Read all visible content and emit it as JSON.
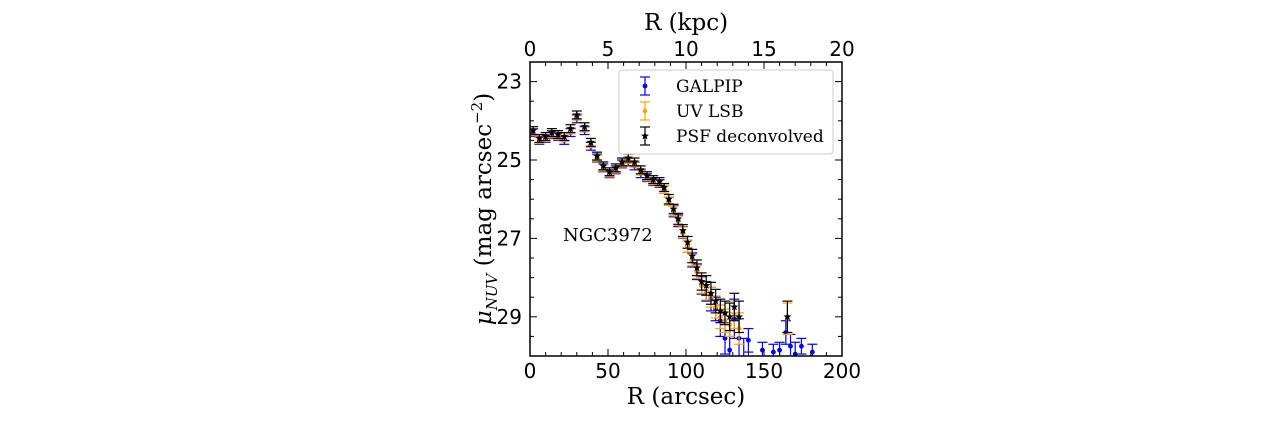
{
  "chart_data": {
    "type": "scatter",
    "title": "",
    "annotation": "NGC3972",
    "xlabel": "R (arcsec)",
    "x2label": "R (kpc)",
    "ylabel": "μ_NUV (mag arcsec⁻²)",
    "ylabel_parts": {
      "mu": "μ",
      "sub": "NUV",
      "rest": " (mag arcsec",
      "exp": "−2",
      "close": ")"
    },
    "xlim": [
      0,
      200
    ],
    "x2lim": [
      0,
      20
    ],
    "ylim": [
      30,
      22.5
    ],
    "yaxis_inverted": true,
    "xticks": [
      0,
      50,
      100,
      150,
      200
    ],
    "x2ticks": [
      0,
      5,
      10,
      15,
      20
    ],
    "yticks": [
      23,
      25,
      27,
      29
    ],
    "legend_position": "upper-right",
    "series": [
      {
        "name": "GALPIP",
        "marker": "dot",
        "color": "#0000ff",
        "x": [
          2,
          6,
          10,
          14,
          18,
          22,
          26,
          30,
          35,
          39,
          43,
          47,
          51,
          55,
          59,
          63,
          67,
          71,
          75,
          79,
          83,
          86,
          89,
          92,
          95,
          98,
          101,
          104,
          107,
          110,
          113,
          116,
          119,
          122,
          125,
          128,
          131,
          134,
          137,
          140,
          149,
          156,
          160,
          164,
          167,
          170,
          174,
          181
        ],
        "y": [
          24.3,
          24.5,
          24.45,
          24.35,
          24.4,
          24.5,
          24.3,
          23.95,
          24.25,
          24.65,
          24.95,
          25.2,
          25.35,
          25.25,
          25.1,
          25.05,
          25.15,
          25.35,
          25.45,
          25.55,
          25.6,
          25.75,
          26.05,
          26.3,
          26.55,
          26.85,
          27.2,
          27.55,
          27.85,
          28.2,
          28.35,
          28.55,
          28.8,
          29.1,
          29.55,
          29.85,
          29.05,
          29.55,
          30.05,
          29.6,
          29.85,
          29.9,
          29.85,
          29.4,
          29.75,
          29.95,
          29.75,
          29.9
        ],
        "err": [
          0.1,
          0.1,
          0.1,
          0.1,
          0.1,
          0.1,
          0.1,
          0.1,
          0.1,
          0.1,
          0.1,
          0.1,
          0.1,
          0.1,
          0.1,
          0.1,
          0.1,
          0.1,
          0.1,
          0.1,
          0.1,
          0.1,
          0.1,
          0.15,
          0.15,
          0.15,
          0.15,
          0.18,
          0.2,
          0.22,
          0.25,
          0.3,
          0.3,
          0.4,
          0.4,
          0.5,
          0.5,
          0.5,
          0.5,
          0.3,
          0.2,
          0.2,
          0.2,
          0.3,
          0.3,
          0.3,
          0.2,
          0.2
        ]
      },
      {
        "name": "UV LSB",
        "marker": "diamond",
        "color": "#ffa500",
        "x": [
          2,
          6,
          10,
          14,
          18,
          22,
          26,
          30,
          35,
          39,
          43,
          47,
          51,
          55,
          59,
          63,
          67,
          71,
          75,
          79,
          83,
          86,
          89,
          92,
          95,
          98,
          101,
          104,
          107,
          110,
          113,
          116,
          119,
          122,
          125,
          128,
          131,
          134,
          165
        ],
        "y": [
          24.3,
          24.5,
          24.45,
          24.35,
          24.4,
          24.45,
          24.25,
          23.9,
          24.2,
          24.6,
          24.95,
          25.2,
          25.35,
          25.25,
          25.1,
          25.0,
          25.1,
          25.3,
          25.45,
          25.55,
          25.6,
          25.75,
          26.05,
          26.3,
          26.55,
          26.85,
          27.2,
          27.55,
          27.85,
          28.2,
          28.35,
          28.5,
          28.75,
          29.0,
          29.1,
          29.2,
          28.95,
          29.3,
          29.05
        ],
        "err": [
          0.08,
          0.08,
          0.08,
          0.08,
          0.08,
          0.08,
          0.08,
          0.08,
          0.08,
          0.08,
          0.08,
          0.08,
          0.08,
          0.08,
          0.08,
          0.08,
          0.08,
          0.08,
          0.08,
          0.08,
          0.08,
          0.1,
          0.1,
          0.12,
          0.12,
          0.14,
          0.15,
          0.15,
          0.17,
          0.2,
          0.22,
          0.25,
          0.28,
          0.3,
          0.3,
          0.3,
          0.35,
          0.4,
          0.4
        ]
      },
      {
        "name": "PSF deconvolved",
        "marker": "star",
        "color": "#000000",
        "x": [
          2,
          6,
          10,
          14,
          18,
          22,
          26,
          30,
          35,
          39,
          43,
          47,
          51,
          55,
          59,
          63,
          67,
          71,
          75,
          79,
          83,
          86,
          89,
          92,
          95,
          98,
          101,
          104,
          107,
          110,
          113,
          116,
          119,
          122,
          125,
          128,
          131,
          134,
          165
        ],
        "y": [
          24.25,
          24.45,
          24.4,
          24.3,
          24.35,
          24.4,
          24.2,
          23.85,
          24.15,
          24.55,
          24.9,
          25.15,
          25.3,
          25.2,
          25.05,
          24.95,
          25.05,
          25.25,
          25.4,
          25.5,
          25.55,
          25.7,
          26.0,
          26.25,
          26.5,
          26.8,
          27.1,
          27.45,
          27.75,
          28.1,
          28.2,
          28.4,
          28.6,
          28.85,
          28.9,
          29.0,
          28.75,
          29.0,
          29.0
        ],
        "err": [
          0.1,
          0.1,
          0.1,
          0.1,
          0.1,
          0.1,
          0.1,
          0.1,
          0.1,
          0.1,
          0.1,
          0.1,
          0.1,
          0.1,
          0.1,
          0.1,
          0.1,
          0.1,
          0.1,
          0.1,
          0.1,
          0.1,
          0.12,
          0.12,
          0.14,
          0.15,
          0.15,
          0.17,
          0.2,
          0.22,
          0.25,
          0.28,
          0.3,
          0.3,
          0.3,
          0.35,
          0.35,
          0.4,
          0.4
        ]
      }
    ]
  }
}
